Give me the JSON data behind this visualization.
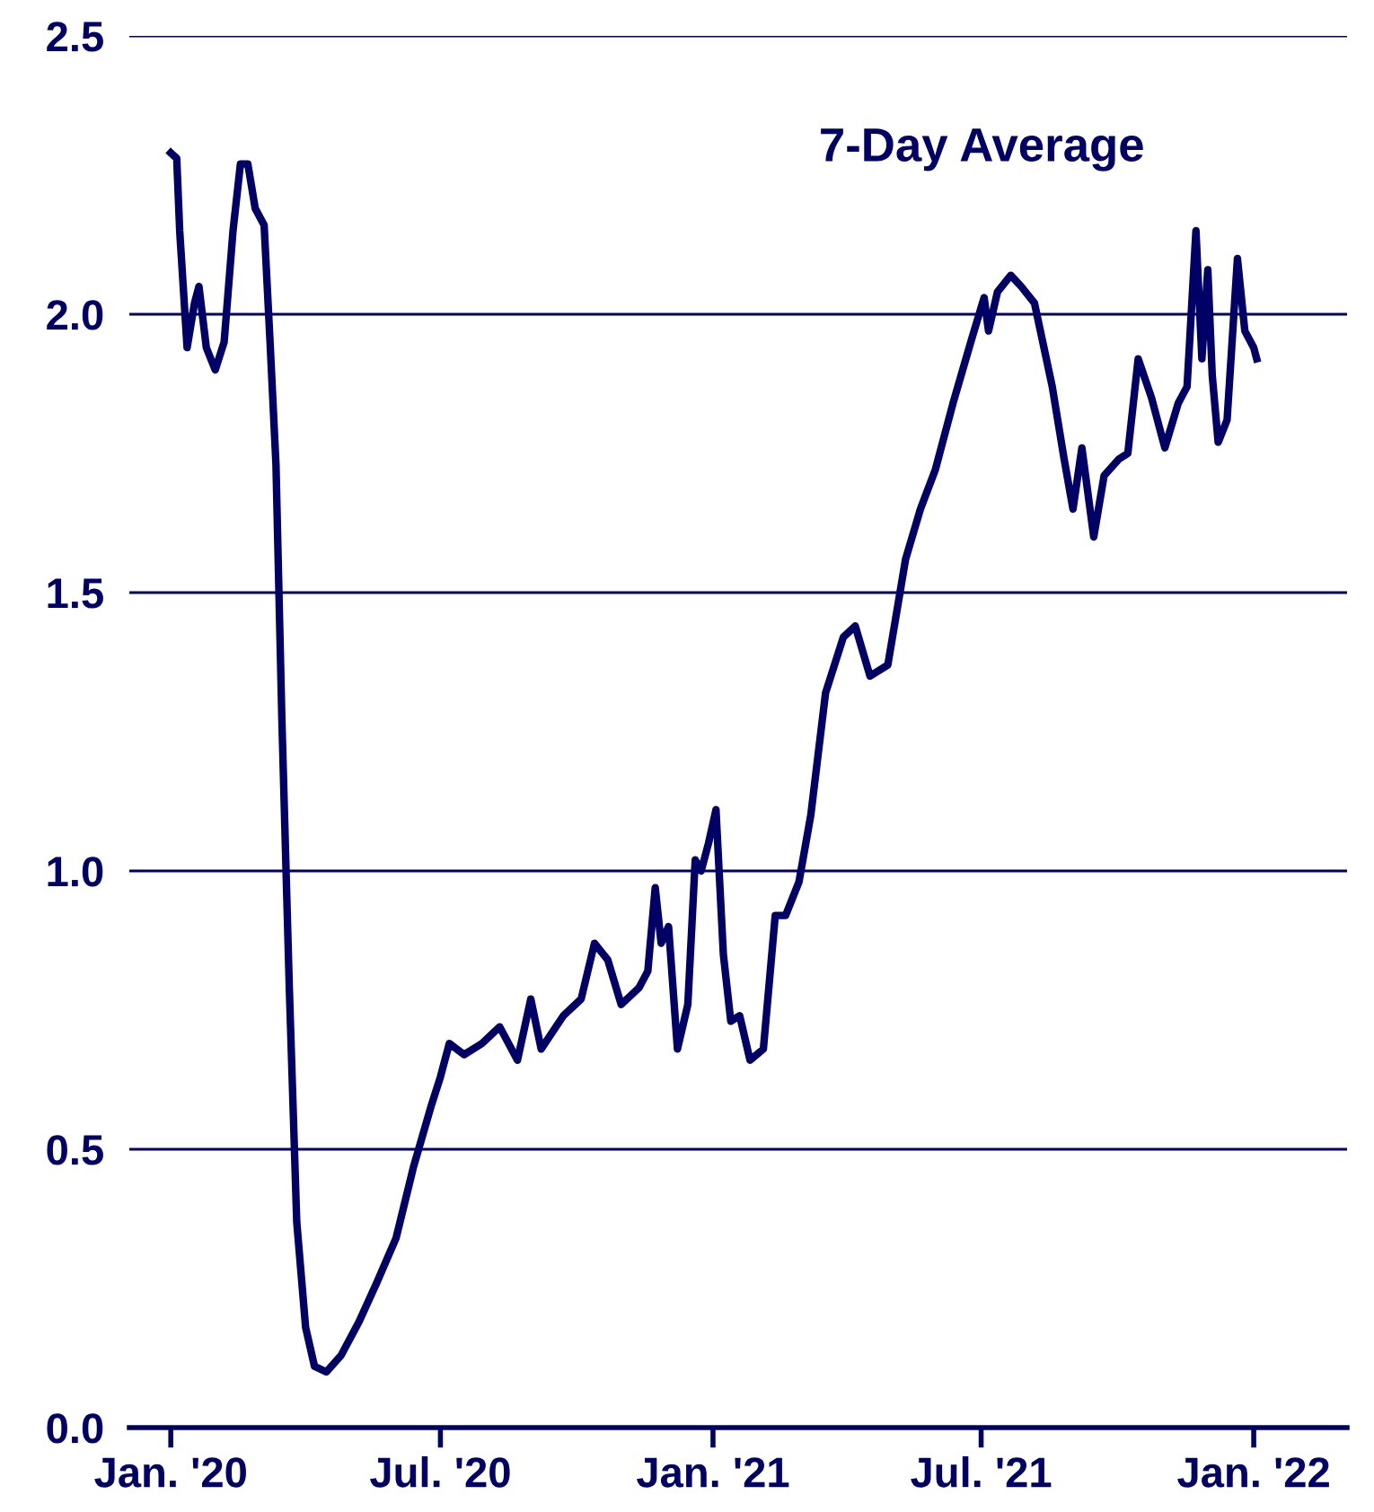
{
  "chart_data": {
    "type": "line",
    "annotations": [
      "7-Day Average"
    ],
    "x": [
      "2020-01-01",
      "2020-01-05",
      "2020-01-07",
      "2020-01-12",
      "2020-01-17",
      "2020-01-20",
      "2020-01-25",
      "2020-01-31",
      "2020-02-06",
      "2020-02-12",
      "2020-02-17",
      "2020-02-22",
      "2020-02-27",
      "2020-03-04",
      "2020-03-08",
      "2020-03-12",
      "2020-03-16",
      "2020-03-21",
      "2020-03-26",
      "2020-04-01",
      "2020-04-07",
      "2020-04-15",
      "2020-04-25",
      "2020-05-07",
      "2020-05-19",
      "2020-06-01",
      "2020-06-13",
      "2020-06-25",
      "2020-07-01",
      "2020-07-07",
      "2020-07-17",
      "2020-07-29",
      "2020-08-10",
      "2020-08-22",
      "2020-08-31",
      "2020-09-07",
      "2020-09-22",
      "2020-10-04",
      "2020-10-13",
      "2020-10-22",
      "2020-10-31",
      "2020-11-12",
      "2020-11-18",
      "2020-11-23",
      "2020-11-27",
      "2020-12-02",
      "2020-12-08",
      "2020-12-15",
      "2020-12-20",
      "2020-12-24",
      "2020-12-29",
      "2021-01-03",
      "2021-01-08",
      "2021-01-13",
      "2021-01-19",
      "2021-01-26",
      "2021-02-04",
      "2021-02-12",
      "2021-02-19",
      "2021-02-28",
      "2021-03-08",
      "2021-03-18",
      "2021-03-30",
      "2021-04-07",
      "2021-04-17",
      "2021-04-29",
      "2021-05-11",
      "2021-05-21",
      "2021-05-31",
      "2021-06-12",
      "2021-06-24",
      "2021-07-03",
      "2021-07-06",
      "2021-07-12",
      "2021-07-21",
      "2021-07-28",
      "2021-08-06",
      "2021-08-18",
      "2021-08-26",
      "2021-09-01",
      "2021-09-07",
      "2021-09-15",
      "2021-09-22",
      "2021-10-02",
      "2021-10-08",
      "2021-10-15",
      "2021-10-24",
      "2021-11-02",
      "2021-11-11",
      "2021-11-17",
      "2021-11-23",
      "2021-11-27",
      "2021-12-01",
      "2021-12-04",
      "2021-12-08",
      "2021-12-14",
      "2021-12-21",
      "2021-12-26",
      "2022-01-01",
      "2022-01-03"
    ],
    "series": [
      {
        "color": "#000066",
        "values": [
          2.29,
          2.28,
          2.15,
          1.94,
          2.02,
          2.05,
          1.94,
          1.9,
          1.95,
          2.15,
          2.27,
          2.27,
          2.19,
          2.16,
          1.95,
          1.73,
          1.27,
          0.79,
          0.37,
          0.18,
          0.11,
          0.1,
          0.13,
          0.19,
          0.26,
          0.34,
          0.47,
          0.58,
          0.63,
          0.69,
          0.67,
          0.69,
          0.72,
          0.66,
          0.77,
          0.68,
          0.74,
          0.77,
          0.87,
          0.84,
          0.76,
          0.79,
          0.82,
          0.97,
          0.87,
          0.9,
          0.68,
          0.76,
          1.02,
          1.0,
          1.05,
          1.11,
          0.85,
          0.73,
          0.74,
          0.66,
          0.68,
          0.92,
          0.92,
          0.98,
          1.1,
          1.32,
          1.42,
          1.44,
          1.35,
          1.37,
          1.56,
          1.65,
          1.72,
          1.84,
          1.95,
          2.03,
          1.97,
          2.04,
          2.07,
          2.05,
          2.02,
          1.87,
          1.74,
          1.65,
          1.76,
          1.6,
          1.71,
          1.74,
          1.75,
          1.92,
          1.85,
          1.76,
          1.84,
          1.87,
          2.15,
          1.92,
          2.08,
          1.89,
          1.77,
          1.81,
          2.1,
          1.97,
          1.94,
          1.92
        ]
      }
    ],
    "xlim": [
      "2019-12-04",
      "2022-03-05"
    ],
    "xticks": [
      {
        "value": "2020-01-01",
        "label": "Jan. '20"
      },
      {
        "value": "2020-07-01",
        "label": "Jul. '20"
      },
      {
        "value": "2021-01-01",
        "label": "Jan. '21"
      },
      {
        "value": "2021-07-01",
        "label": "Jul. '21"
      },
      {
        "value": "2022-01-01",
        "label": "Jan. '22"
      }
    ],
    "ylim": [
      0,
      2.5
    ],
    "yticks": [
      {
        "value": 0,
        "label": "0.0"
      },
      {
        "value": 0.5,
        "label": "0.5"
      },
      {
        "value": 1,
        "label": "1.0"
      },
      {
        "value": 1.5,
        "label": "1.5"
      },
      {
        "value": 2,
        "label": "2.0"
      },
      {
        "value": 2.5,
        "label": "2.5"
      }
    ],
    "grid": "y",
    "legend": false,
    "marker": "none",
    "line_style": "solid"
  }
}
